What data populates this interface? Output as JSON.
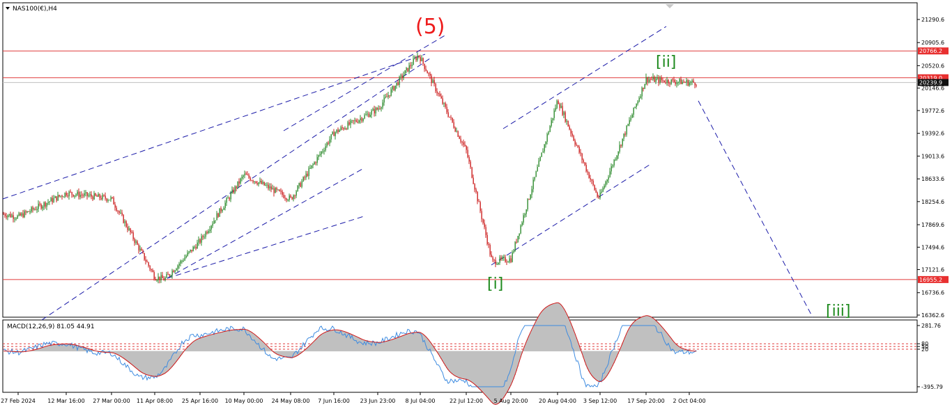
{
  "symbol": "NAS100(€),H4",
  "indicator_label": "MACD(12,26,9) 81.05 44.91",
  "colors": {
    "up": "#2e8b2e",
    "down": "#cc2020",
    "hline": "#e03a3a",
    "trend": "#1a1aa8",
    "wave_red": "#ee1c1c",
    "wave_green": "#1e8a1e",
    "macd_line": "#3d8be0",
    "signal": "#d01818",
    "hist": "#c0c0c0"
  },
  "price_axis": {
    "ticks": [
      "21290.6",
      "20905.6",
      "20520.6",
      "20146.6",
      "19772.6",
      "19392.6",
      "19013.6",
      "18633.6",
      "18254.6",
      "17869.6",
      "17494.6",
      "17121.6",
      "16736.6",
      "16362.6"
    ],
    "badges": [
      {
        "text": "20766.2",
        "style": "red"
      },
      {
        "text": "20319.0",
        "style": "red"
      },
      {
        "text": "20239.9",
        "style": "dark"
      },
      {
        "text": "16955.2",
        "style": "red"
      }
    ]
  },
  "macd_axis": {
    "ticks": [
      "281.76",
      "80",
      "50",
      "20",
      "-395.79"
    ]
  },
  "time_axis": {
    "labels": [
      "27 Feb 2024",
      "12 Mar 16:00",
      "27 Mar 00:00",
      "11 Apr 08:00",
      "25 Apr 16:00",
      "10 May 00:00",
      "24 May 08:00",
      "7 Jun 16:00",
      "23 Jun 23:00",
      "8 Jul 04:00",
      "22 Jul 12:00",
      "5 Aug 20:00",
      "20 Aug 04:00",
      "3 Sep 12:00",
      "17 Sep 20:00",
      "2 Oct 04:00"
    ]
  },
  "waves": [
    {
      "label": "(5)",
      "color": "red"
    },
    {
      "label": "[i]",
      "color": "green"
    },
    {
      "label": "[ii]",
      "color": "green"
    },
    {
      "label": "[iii]",
      "color": "green"
    }
  ],
  "chart_data": {
    "type": "candlestick",
    "title": "NAS100(€),H4",
    "price_range": [
      16362.6,
      21290.6
    ],
    "horizontal_levels": [
      20766.2,
      20319.0,
      16955.2
    ],
    "last_price": 20239.9,
    "price_path": [
      [
        "27 Feb 2024",
        18000
      ],
      [
        "12 Mar 16:00",
        18400
      ],
      [
        "27 Mar 00:00",
        18300
      ],
      [
        "11 Apr 08:00",
        17000
      ],
      [
        "25 Apr 16:00",
        17600
      ],
      [
        "10 May 00:00",
        18700
      ],
      [
        "24 May 08:00",
        18300
      ],
      [
        "7 Jun 16:00",
        19400
      ],
      [
        "23 Jun 23:00",
        19800
      ],
      [
        "8 Jul 04:00",
        20650
      ],
      [
        "22 Jul 12:00",
        19100
      ],
      [
        "5 Aug 20:00",
        17300
      ],
      [
        "20 Aug 04:00",
        19950
      ],
      [
        "3 Sep 12:00",
        18350
      ],
      [
        "17 Sep 20:00",
        20300
      ],
      [
        "2 Oct 04:00",
        20240
      ]
    ],
    "indicator": {
      "name": "MACD(12,26,9)",
      "main": 81.05,
      "signal": 44.91,
      "range": [
        -395.79,
        281.76
      ],
      "levels": [
        80,
        50,
        20
      ]
    }
  }
}
